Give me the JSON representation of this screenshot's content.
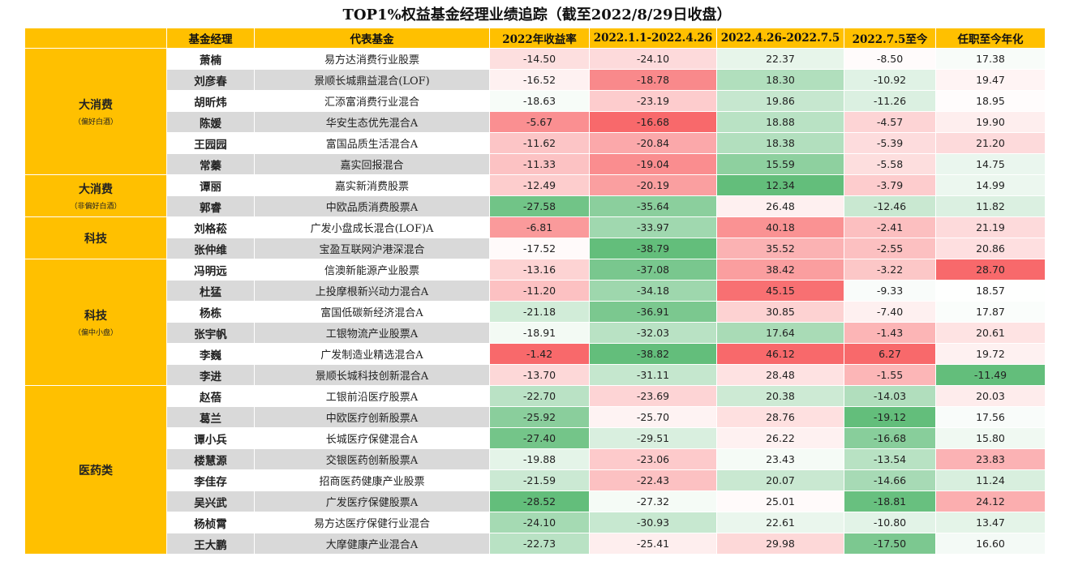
{
  "title": "TOP1%权益基金经理业绩追踪（截至2022/8/29日收盘）",
  "headers": [
    "",
    "基金经理",
    "代表基金",
    "2022年收益率",
    "2022.1.1-2022.4.26",
    "2022.4.26-2022.7.5",
    "2022.7.5至今",
    "任职至今年化"
  ],
  "groups": [
    {
      "label": "大消费",
      "sub": "（偏好白酒）",
      "rows": [
        {
          "manager": "萧楠",
          "fund": "易方达消费行业股票",
          "values": [
            "-14.50",
            "-24.10",
            "22.37",
            "-8.50",
            "17.38"
          ]
        },
        {
          "manager": "刘彦春",
          "fund": "景顺长城鼎益混合(LOF)",
          "values": [
            "-16.52",
            "-18.78",
            "18.30",
            "-10.92",
            "19.47"
          ]
        },
        {
          "manager": "胡昕炜",
          "fund": "汇添富消费行业混合",
          "values": [
            "-18.63",
            "-23.19",
            "19.86",
            "-11.26",
            "18.95"
          ]
        },
        {
          "manager": "陈媛",
          "fund": "华安生态优先混合A",
          "values": [
            "-5.67",
            "-16.68",
            "18.88",
            "-4.57",
            "19.90"
          ]
        },
        {
          "manager": "王园园",
          "fund": "富国品质生活混合A",
          "values": [
            "-11.62",
            "-20.84",
            "18.38",
            "-5.39",
            "21.20"
          ]
        },
        {
          "manager": "常蓁",
          "fund": "嘉实回报混合",
          "values": [
            "-11.33",
            "-19.04",
            "15.59",
            "-5.58",
            "14.75"
          ]
        }
      ]
    },
    {
      "label": "大消费",
      "sub": "（非偏好白酒）",
      "rows": [
        {
          "manager": "谭丽",
          "fund": "嘉实新消费股票",
          "values": [
            "-12.49",
            "-20.19",
            "12.34",
            "-3.79",
            "14.99"
          ]
        },
        {
          "manager": "郭睿",
          "fund": "中欧品质消费股票A",
          "values": [
            "-27.58",
            "-35.64",
            "26.48",
            "-12.46",
            "11.82"
          ]
        }
      ]
    },
    {
      "label": "科技",
      "sub": "",
      "rows": [
        {
          "manager": "刘格菘",
          "fund": "广发小盘成长混合(LOF)A",
          "values": [
            "-6.81",
            "-33.97",
            "40.18",
            "-2.41",
            "21.19"
          ]
        },
        {
          "manager": "张仲维",
          "fund": "宝盈互联网沪港深混合",
          "values": [
            "-17.52",
            "-38.79",
            "35.52",
            "-2.55",
            "20.86"
          ]
        }
      ]
    },
    {
      "label": "科技",
      "sub": "（偏中小盘）",
      "rows": [
        {
          "manager": "冯明远",
          "fund": "信澳新能源产业股票",
          "values": [
            "-13.16",
            "-37.08",
            "38.42",
            "-3.22",
            "28.70"
          ]
        },
        {
          "manager": "杜猛",
          "fund": "上投摩根新兴动力混合A",
          "values": [
            "-11.20",
            "-34.18",
            "45.15",
            "-9.33",
            "18.57"
          ]
        },
        {
          "manager": "杨栋",
          "fund": "富国低碳新经济混合A",
          "values": [
            "-21.18",
            "-36.91",
            "30.85",
            "-7.40",
            "17.87"
          ]
        },
        {
          "manager": "张宇帆",
          "fund": "工银物流产业股票A",
          "values": [
            "-18.91",
            "-32.03",
            "17.64",
            "-1.43",
            "20.61"
          ]
        },
        {
          "manager": "李巍",
          "fund": "广发制造业精选混合A",
          "values": [
            "-1.42",
            "-38.82",
            "46.12",
            "6.27",
            "19.72"
          ]
        },
        {
          "manager": "李进",
          "fund": "景顺长城科技创新混合A",
          "values": [
            "-13.70",
            "-31.11",
            "28.48",
            "-1.55",
            "-11.49"
          ]
        }
      ]
    },
    {
      "label": "医药类",
      "sub": "",
      "rows": [
        {
          "manager": "赵蓓",
          "fund": "工银前沿医疗股票A",
          "values": [
            "-22.70",
            "-23.69",
            "20.38",
            "-14.03",
            "20.03"
          ]
        },
        {
          "manager": "葛兰",
          "fund": "中欧医疗创新股票A",
          "values": [
            "-25.92",
            "-25.70",
            "28.76",
            "-19.12",
            "17.56"
          ]
        },
        {
          "manager": "谭小兵",
          "fund": "长城医疗保健混合A",
          "values": [
            "-27.40",
            "-29.51",
            "26.22",
            "-16.68",
            "15.80"
          ]
        },
        {
          "manager": "楼慧源",
          "fund": "交银医药创新股票A",
          "values": [
            "-19.88",
            "-23.06",
            "23.43",
            "-13.54",
            "23.83"
          ]
        },
        {
          "manager": "李佳存",
          "fund": "招商医药健康产业股票",
          "values": [
            "-21.59",
            "-22.43",
            "20.07",
            "-14.66",
            "11.24"
          ]
        },
        {
          "manager": "吴兴武",
          "fund": "广发医疗保健股票A",
          "values": [
            "-28.52",
            "-27.32",
            "25.01",
            "-18.81",
            "24.12"
          ]
        },
        {
          "manager": "杨桢霄",
          "fund": "易方达医疗保健行业混合",
          "values": [
            "-24.10",
            "-30.93",
            "22.61",
            "-10.80",
            "13.47"
          ]
        },
        {
          "manager": "王大鹏",
          "fund": "大摩健康产业混合A",
          "values": [
            "-22.73",
            "-25.41",
            "29.98",
            "-17.50",
            "16.60"
          ]
        }
      ]
    }
  ]
}
